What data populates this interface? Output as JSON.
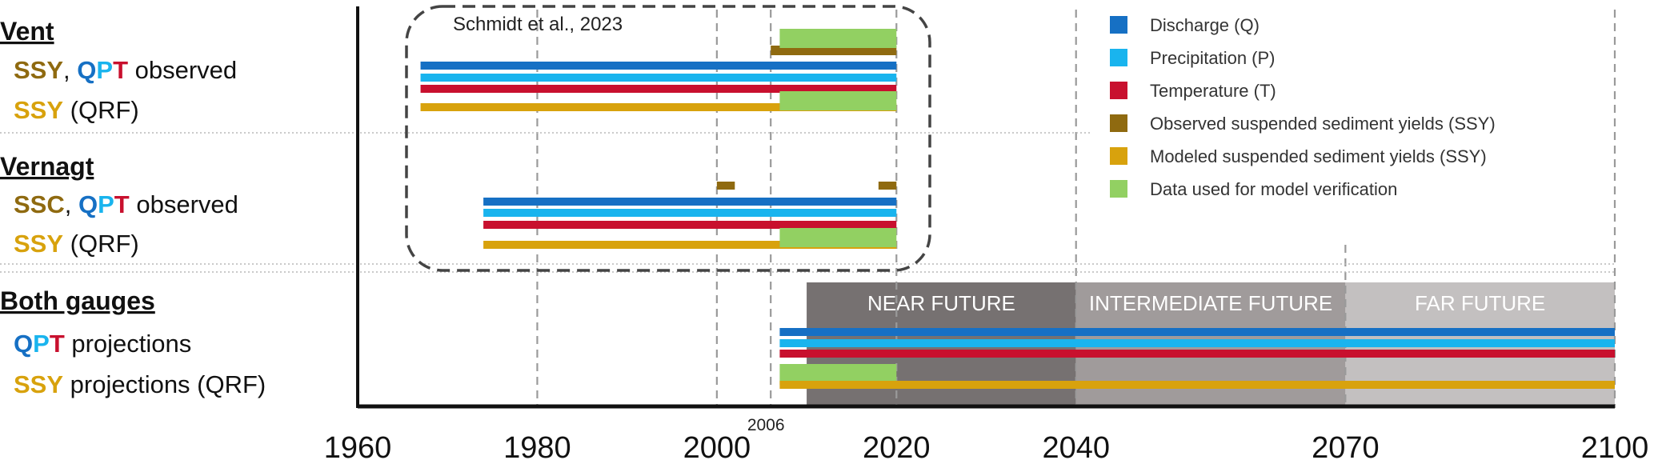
{
  "colors": {
    "discharge": "#1670c4",
    "precipitation": "#19b4ee",
    "temperature": "#c8102e",
    "ssy_observed": "#8f6a10",
    "ssy_modeled": "#d8a20d",
    "verification": "#92d062",
    "near": "#767171",
    "intermediate": "#a09b9b",
    "far": "#c3c0c0"
  },
  "groups": [
    {
      "heading": "Vent",
      "rows": [
        {
          "parts": [
            {
              "t": "SSY",
              "c": "ssy_observed"
            },
            {
              "t": ", ",
              "c": ""
            },
            {
              "t": "Q",
              "c": "discharge"
            },
            {
              "t": "P",
              "c": "precipitation"
            },
            {
              "t": "T",
              "c": "temperature"
            },
            {
              "t": " observed",
              "c": ""
            }
          ]
        },
        {
          "parts": [
            {
              "t": "SSY",
              "c": "ssy_modeled"
            },
            {
              "t": " (QRF)",
              "c": ""
            }
          ]
        }
      ]
    },
    {
      "heading": "Vernagt",
      "rows": [
        {
          "parts": [
            {
              "t": "SSC",
              "c": "ssy_observed"
            },
            {
              "t": ", ",
              "c": ""
            },
            {
              "t": "Q",
              "c": "discharge"
            },
            {
              "t": "P",
              "c": "precipitation"
            },
            {
              "t": "T",
              "c": "temperature"
            },
            {
              "t": " observed",
              "c": ""
            }
          ]
        },
        {
          "parts": [
            {
              "t": "SSY",
              "c": "ssy_modeled"
            },
            {
              "t": " (QRF)",
              "c": ""
            }
          ]
        }
      ]
    },
    {
      "heading": "Both gauges",
      "rows": [
        {
          "parts": [
            {
              "t": "Q",
              "c": "discharge"
            },
            {
              "t": "P",
              "c": "precipitation"
            },
            {
              "t": "T",
              "c": "temperature"
            },
            {
              "t": " projections",
              "c": ""
            }
          ]
        },
        {
          "parts": [
            {
              "t": "SSY",
              "c": "ssy_modeled"
            },
            {
              "t": " projections (QRF)",
              "c": ""
            }
          ]
        }
      ]
    }
  ],
  "annotation": "Schmidt et al., 2023",
  "chart_data": {
    "type": "timeline",
    "xlim": [
      1960,
      2100
    ],
    "x_ticks": [
      1960,
      1980,
      2000,
      2020,
      2040,
      2070,
      2100
    ],
    "minor_tick_label": "2006",
    "periods": [
      {
        "label": "NEAR FUTURE",
        "start": 2010,
        "end": 2040,
        "color": "near"
      },
      {
        "label": "INTERMEDIATE FUTURE",
        "start": 2040,
        "end": 2070,
        "color": "intermediate"
      },
      {
        "label": "FAR FUTURE",
        "start": 2070,
        "end": 2100,
        "color": "far"
      }
    ],
    "legend": [
      {
        "label": "Discharge (Q)",
        "color": "discharge"
      },
      {
        "label": "Precipitation (P)",
        "color": "precipitation"
      },
      {
        "label": "Temperature (T)",
        "color": "temperature"
      },
      {
        "label": "Observed suspended sediment yields (SSY)",
        "color": "ssy_observed"
      },
      {
        "label": "Modeled suspended sediment yields (SSY)",
        "color": "ssy_modeled"
      },
      {
        "label": "Data used for model verification",
        "color": "verification"
      }
    ],
    "bars": [
      {
        "group": "Vent",
        "variable": "Observed SSY",
        "start": 2006,
        "end": 2020,
        "color": "ssy_observed"
      },
      {
        "group": "Vent",
        "variable": "Discharge (Q)",
        "start": 1967,
        "end": 2020,
        "color": "discharge"
      },
      {
        "group": "Vent",
        "variable": "Precipitation (P)",
        "start": 1967,
        "end": 2020,
        "color": "precipitation"
      },
      {
        "group": "Vent",
        "variable": "Temperature (T)",
        "start": 1967,
        "end": 2020,
        "color": "temperature"
      },
      {
        "group": "Vent",
        "variable": "Modeled SSY (QRF)",
        "start": 1967,
        "end": 2020,
        "color": "ssy_modeled"
      },
      {
        "group": "Vent",
        "variable": "Verification (observed SSY)",
        "start": 2007,
        "end": 2020,
        "color": "verification"
      },
      {
        "group": "Vent",
        "variable": "Verification (modeled SSY)",
        "start": 2007,
        "end": 2020,
        "color": "verification"
      },
      {
        "group": "Vernagt",
        "variable": "Observed SSC",
        "start": 2000,
        "end": 2002,
        "color": "ssy_observed"
      },
      {
        "group": "Vernagt",
        "variable": "Observed SSC",
        "start": 2018,
        "end": 2020,
        "color": "ssy_observed"
      },
      {
        "group": "Vernagt",
        "variable": "Discharge (Q)",
        "start": 1974,
        "end": 2020,
        "color": "discharge"
      },
      {
        "group": "Vernagt",
        "variable": "Precipitation (P)",
        "start": 1974,
        "end": 2020,
        "color": "precipitation"
      },
      {
        "group": "Vernagt",
        "variable": "Temperature (T)",
        "start": 1974,
        "end": 2020,
        "color": "temperature"
      },
      {
        "group": "Vernagt",
        "variable": "Modeled SSY (QRF)",
        "start": 1974,
        "end": 2020,
        "color": "ssy_modeled"
      },
      {
        "group": "Vernagt",
        "variable": "Verification (modeled SSY)",
        "start": 2007,
        "end": 2020,
        "color": "verification"
      },
      {
        "group": "Both gauges",
        "variable": "Discharge (Q) projections",
        "start": 2007,
        "end": 2100,
        "color": "discharge"
      },
      {
        "group": "Both gauges",
        "variable": "Precipitation (P) projections",
        "start": 2007,
        "end": 2100,
        "color": "precipitation"
      },
      {
        "group": "Both gauges",
        "variable": "Temperature (T) projections",
        "start": 2007,
        "end": 2100,
        "color": "temperature"
      },
      {
        "group": "Both gauges",
        "variable": "Verification (SSY projections)",
        "start": 2007,
        "end": 2020,
        "color": "verification"
      },
      {
        "group": "Both gauges",
        "variable": "SSY projections (QRF)",
        "start": 2007,
        "end": 2100,
        "color": "ssy_modeled"
      }
    ]
  }
}
